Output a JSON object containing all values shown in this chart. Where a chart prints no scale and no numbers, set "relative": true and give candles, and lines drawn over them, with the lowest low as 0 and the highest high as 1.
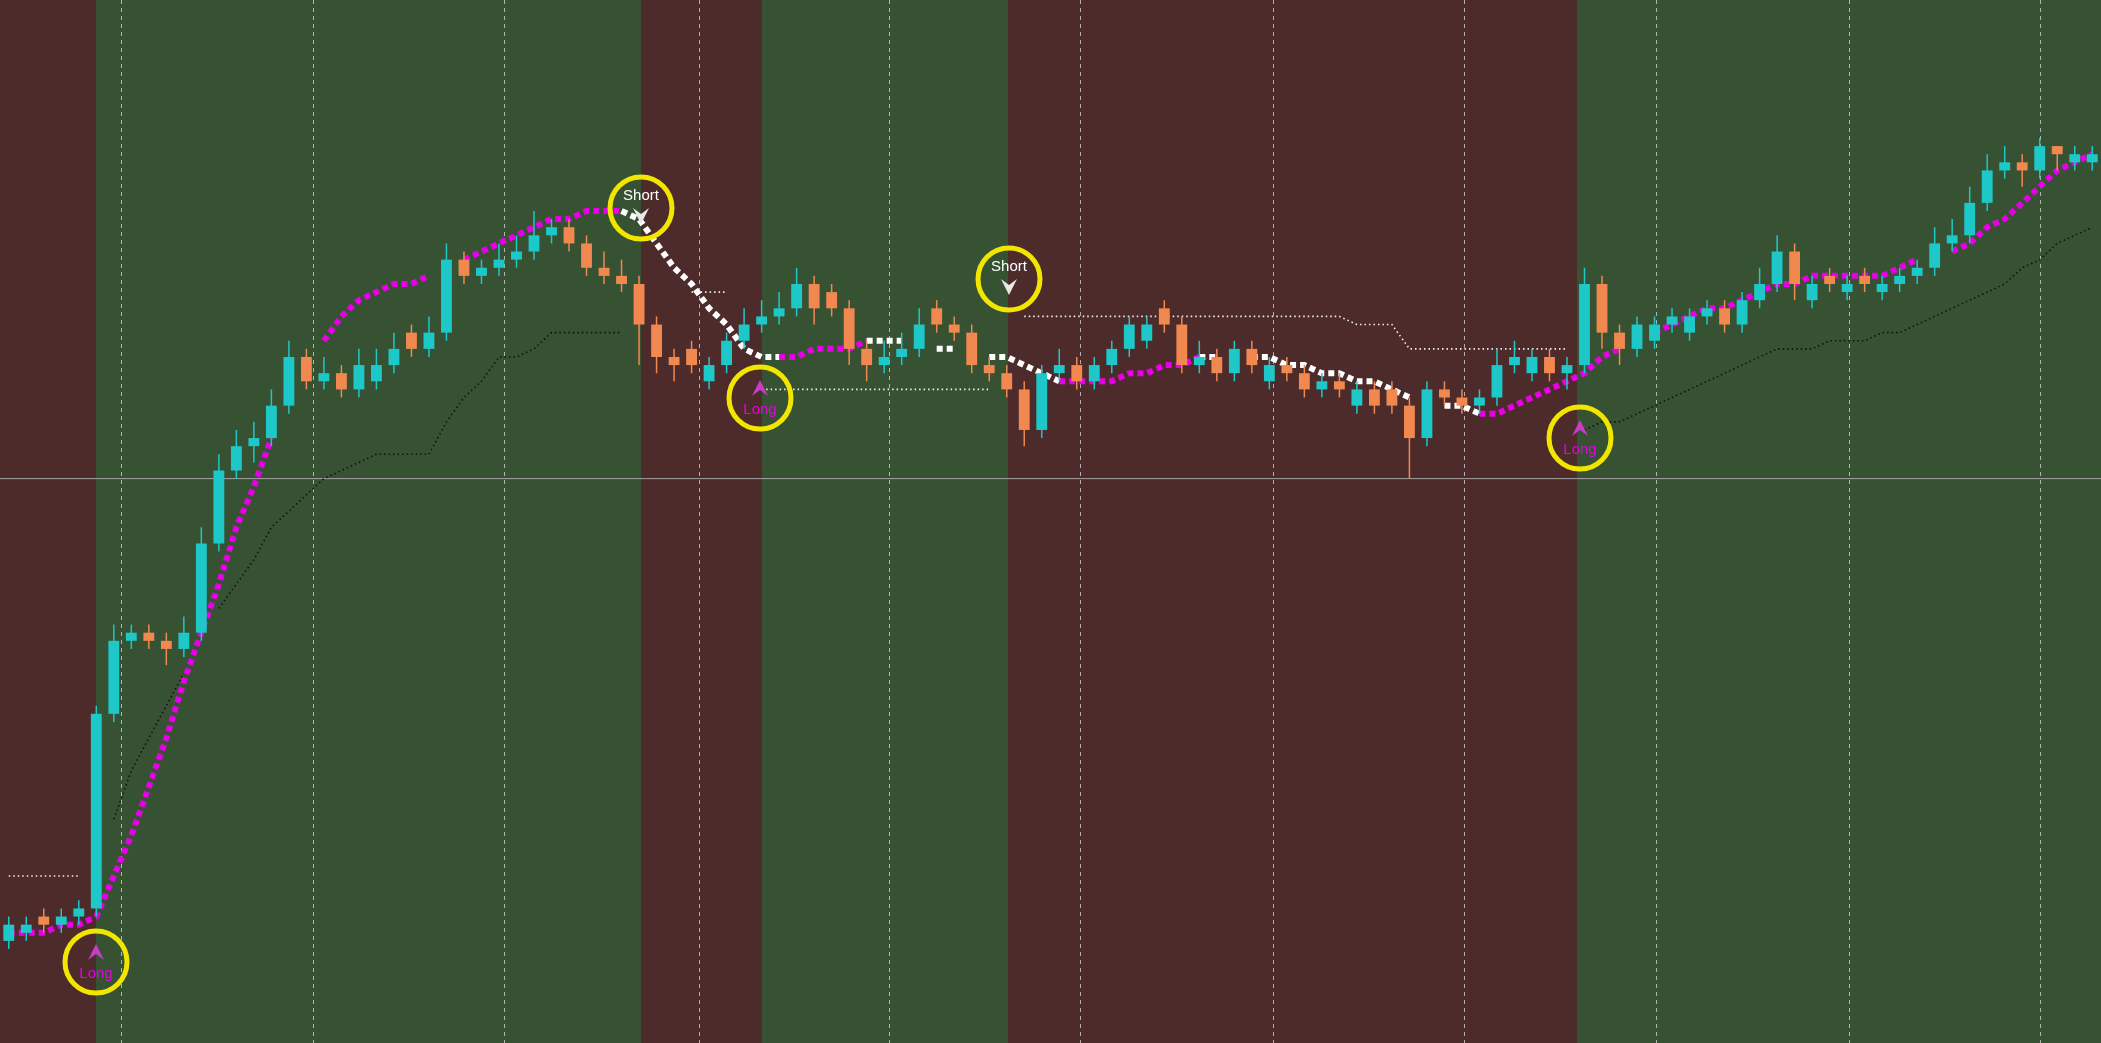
{
  "chart_data": {
    "type": "candlestick",
    "relative": true,
    "categories": [
      null,
      null,
      null,
      null,
      null,
      null,
      null,
      null,
      null,
      null,
      null,
      null,
      null,
      null,
      null,
      null,
      null,
      null,
      null,
      null,
      null,
      null,
      null,
      null,
      null,
      null,
      null,
      null,
      null,
      null,
      null,
      null,
      null,
      null,
      null,
      null,
      null,
      null,
      null,
      null,
      null,
      null,
      null,
      null,
      null,
      null,
      null,
      null,
      null,
      null,
      null,
      null,
      null,
      null,
      null,
      null,
      null,
      null,
      null,
      null,
      null,
      null,
      null,
      null,
      null,
      null,
      null,
      null,
      null,
      null,
      null,
      null,
      null,
      null,
      null,
      null,
      null,
      null,
      null,
      null,
      null,
      null,
      null,
      null,
      null,
      null,
      null,
      null,
      null,
      null,
      null,
      null,
      null,
      null,
      null,
      null,
      null,
      null,
      null,
      null,
      null,
      null,
      null,
      null,
      null,
      null,
      null,
      null,
      null,
      null,
      null,
      null,
      null,
      null,
      null,
      null,
      null,
      null,
      null,
      null
    ],
    "ref_lines": [
      {
        "axis": "y",
        "value": 0.58,
        "color": "#a3a3a3",
        "line_style": "solid"
      }
    ],
    "series": [
      {
        "ohlc": [
          [
            0.01,
            0.04,
            0.0,
            0.03
          ],
          [
            0.02,
            0.04,
            0.01,
            0.03
          ],
          [
            0.04,
            0.05,
            0.02,
            0.03
          ],
          [
            0.03,
            0.05,
            0.02,
            0.04
          ],
          [
            0.04,
            0.06,
            0.03,
            0.05
          ],
          [
            0.05,
            0.3,
            0.04,
            0.29
          ],
          [
            0.29,
            0.4,
            0.28,
            0.38
          ],
          [
            0.38,
            0.4,
            0.37,
            0.39
          ],
          [
            0.39,
            0.4,
            0.37,
            0.38
          ],
          [
            0.38,
            0.39,
            0.35,
            0.37
          ],
          [
            0.37,
            0.41,
            0.36,
            0.39
          ],
          [
            0.39,
            0.52,
            0.38,
            0.5
          ],
          [
            0.5,
            0.61,
            0.49,
            0.59
          ],
          [
            0.59,
            0.64,
            0.58,
            0.62
          ],
          [
            0.62,
            0.65,
            0.6,
            0.63
          ],
          [
            0.63,
            0.69,
            0.62,
            0.67
          ],
          [
            0.67,
            0.75,
            0.66,
            0.73
          ],
          [
            0.73,
            0.74,
            0.69,
            0.7
          ],
          [
            0.7,
            0.73,
            0.69,
            0.71
          ],
          [
            0.71,
            0.72,
            0.68,
            0.69
          ],
          [
            0.69,
            0.74,
            0.68,
            0.72
          ],
          [
            0.7,
            0.74,
            0.69,
            0.72
          ],
          [
            0.72,
            0.76,
            0.71,
            0.74
          ],
          [
            0.76,
            0.77,
            0.73,
            0.74
          ],
          [
            0.74,
            0.78,
            0.73,
            0.76
          ],
          [
            0.76,
            0.87,
            0.75,
            0.85
          ],
          [
            0.85,
            0.86,
            0.82,
            0.83
          ],
          [
            0.83,
            0.85,
            0.82,
            0.84
          ],
          [
            0.84,
            0.87,
            0.83,
            0.85
          ],
          [
            0.85,
            0.88,
            0.84,
            0.86
          ],
          [
            0.86,
            0.91,
            0.85,
            0.88
          ],
          [
            0.88,
            0.9,
            0.87,
            0.89
          ],
          [
            0.89,
            0.9,
            0.86,
            0.87
          ],
          [
            0.87,
            0.88,
            0.83,
            0.84
          ],
          [
            0.84,
            0.86,
            0.82,
            0.83
          ],
          [
            0.83,
            0.85,
            0.81,
            0.82
          ],
          [
            0.82,
            0.83,
            0.72,
            0.77
          ],
          [
            0.77,
            0.78,
            0.71,
            0.73
          ],
          [
            0.73,
            0.74,
            0.7,
            0.72
          ],
          [
            0.74,
            0.75,
            0.71,
            0.72
          ],
          [
            0.7,
            0.73,
            0.69,
            0.72
          ],
          [
            0.72,
            0.76,
            0.71,
            0.75
          ],
          [
            0.75,
            0.79,
            0.74,
            0.77
          ],
          [
            0.77,
            0.8,
            0.76,
            0.78
          ],
          [
            0.78,
            0.81,
            0.77,
            0.79
          ],
          [
            0.79,
            0.84,
            0.78,
            0.82
          ],
          [
            0.82,
            0.83,
            0.77,
            0.79
          ],
          [
            0.81,
            0.82,
            0.78,
            0.79
          ],
          [
            0.79,
            0.8,
            0.72,
            0.74
          ],
          [
            0.74,
            0.75,
            0.7,
            0.72
          ],
          [
            0.72,
            0.75,
            0.71,
            0.73
          ],
          [
            0.73,
            0.76,
            0.72,
            0.74
          ],
          [
            0.74,
            0.79,
            0.73,
            0.77
          ],
          [
            0.79,
            0.8,
            0.76,
            0.77
          ],
          [
            0.77,
            0.78,
            0.75,
            0.76
          ],
          [
            0.76,
            0.77,
            0.71,
            0.72
          ],
          [
            0.72,
            0.73,
            0.7,
            0.71
          ],
          [
            0.71,
            0.72,
            0.68,
            0.69
          ],
          [
            0.69,
            0.7,
            0.62,
            0.64
          ],
          [
            0.64,
            0.72,
            0.63,
            0.71
          ],
          [
            0.71,
            0.74,
            0.7,
            0.72
          ],
          [
            0.72,
            0.73,
            0.69,
            0.7
          ],
          [
            0.7,
            0.73,
            0.69,
            0.72
          ],
          [
            0.72,
            0.75,
            0.71,
            0.74
          ],
          [
            0.74,
            0.78,
            0.73,
            0.77
          ],
          [
            0.75,
            0.78,
            0.74,
            0.77
          ],
          [
            0.79,
            0.8,
            0.76,
            0.77
          ],
          [
            0.77,
            0.78,
            0.71,
            0.72
          ],
          [
            0.72,
            0.75,
            0.71,
            0.73
          ],
          [
            0.73,
            0.74,
            0.7,
            0.71
          ],
          [
            0.71,
            0.75,
            0.7,
            0.74
          ],
          [
            0.74,
            0.75,
            0.71,
            0.72
          ],
          [
            0.7,
            0.73,
            0.69,
            0.72
          ],
          [
            0.72,
            0.73,
            0.7,
            0.71
          ],
          [
            0.71,
            0.72,
            0.68,
            0.69
          ],
          [
            0.69,
            0.71,
            0.68,
            0.7
          ],
          [
            0.7,
            0.71,
            0.68,
            0.69
          ],
          [
            0.67,
            0.7,
            0.66,
            0.69
          ],
          [
            0.69,
            0.7,
            0.66,
            0.67
          ],
          [
            0.69,
            0.7,
            0.66,
            0.67
          ],
          [
            0.67,
            0.68,
            0.58,
            0.63
          ],
          [
            0.63,
            0.7,
            0.62,
            0.69
          ],
          [
            0.69,
            0.7,
            0.67,
            0.68
          ],
          [
            0.68,
            0.69,
            0.66,
            0.67
          ],
          [
            0.67,
            0.69,
            0.66,
            0.68
          ],
          [
            0.68,
            0.74,
            0.67,
            0.72
          ],
          [
            0.72,
            0.75,
            0.71,
            0.73
          ],
          [
            0.71,
            0.74,
            0.7,
            0.73
          ],
          [
            0.73,
            0.74,
            0.7,
            0.71
          ],
          [
            0.71,
            0.73,
            0.69,
            0.72
          ],
          [
            0.72,
            0.84,
            0.71,
            0.82
          ],
          [
            0.82,
            0.83,
            0.74,
            0.76
          ],
          [
            0.76,
            0.77,
            0.72,
            0.74
          ],
          [
            0.74,
            0.78,
            0.73,
            0.77
          ],
          [
            0.75,
            0.78,
            0.74,
            0.77
          ],
          [
            0.77,
            0.79,
            0.76,
            0.78
          ],
          [
            0.76,
            0.79,
            0.75,
            0.78
          ],
          [
            0.78,
            0.8,
            0.77,
            0.79
          ],
          [
            0.79,
            0.8,
            0.76,
            0.77
          ],
          [
            0.77,
            0.81,
            0.76,
            0.8
          ],
          [
            0.8,
            0.84,
            0.79,
            0.82
          ],
          [
            0.82,
            0.88,
            0.81,
            0.86
          ],
          [
            0.86,
            0.87,
            0.8,
            0.82
          ],
          [
            0.8,
            0.83,
            0.79,
            0.82
          ],
          [
            0.83,
            0.84,
            0.81,
            0.82
          ],
          [
            0.81,
            0.83,
            0.8,
            0.82
          ],
          [
            0.83,
            0.84,
            0.81,
            0.82
          ],
          [
            0.81,
            0.83,
            0.8,
            0.82
          ],
          [
            0.82,
            0.84,
            0.81,
            0.83
          ],
          [
            0.83,
            0.85,
            0.82,
            0.84
          ],
          [
            0.84,
            0.89,
            0.83,
            0.87
          ],
          [
            0.87,
            0.9,
            0.86,
            0.88
          ],
          [
            0.88,
            0.94,
            0.87,
            0.92
          ],
          [
            0.92,
            0.98,
            0.91,
            0.96
          ],
          [
            0.96,
            0.99,
            0.95,
            0.97
          ],
          [
            0.97,
            0.98,
            0.94,
            0.96
          ],
          [
            0.96,
            1.0,
            0.95,
            0.99
          ],
          [
            0.99,
            0.99,
            0.96,
            0.98
          ],
          [
            0.97,
            0.99,
            0.96,
            0.98
          ],
          [
            0.97,
            0.99,
            0.96,
            0.98
          ]
        ],
        "colors": [
          "#1ec8c8",
          "#1ec8c8",
          "#f0884f",
          "#1ec8c8",
          "#1ec8c8",
          "#1ec8c8",
          "#1ec8c8",
          "#1ec8c8",
          "#f0884f",
          "#f0884f",
          "#1ec8c8",
          "#1ec8c8",
          "#1ec8c8",
          "#1ec8c8",
          "#1ec8c8",
          "#1ec8c8",
          "#1ec8c8",
          "#f0884f",
          "#1ec8c8",
          "#f0884f",
          "#1ec8c8",
          "#1ec8c8",
          "#1ec8c8",
          "#f0884f",
          "#1ec8c8",
          "#1ec8c8",
          "#f0884f",
          "#1ec8c8",
          "#1ec8c8",
          "#1ec8c8",
          "#1ec8c8",
          "#1ec8c8",
          "#f0884f",
          "#f0884f",
          "#f0884f",
          "#f0884f",
          "#f0884f",
          "#f0884f",
          "#f0884f",
          "#f0884f",
          "#1ec8c8",
          "#1ec8c8",
          "#1ec8c8",
          "#1ec8c8",
          "#1ec8c8",
          "#1ec8c8",
          "#f0884f",
          "#f0884f",
          "#f0884f",
          "#f0884f",
          "#1ec8c8",
          "#1ec8c8",
          "#1ec8c8",
          "#f0884f",
          "#f0884f",
          "#f0884f",
          "#f0884f",
          "#f0884f",
          "#f0884f",
          "#1ec8c8",
          "#1ec8c8",
          "#f0884f",
          "#1ec8c8",
          "#1ec8c8",
          "#1ec8c8",
          "#1ec8c8",
          "#f0884f",
          "#f0884f",
          "#1ec8c8",
          "#f0884f",
          "#1ec8c8",
          "#f0884f",
          "#1ec8c8",
          "#f0884f",
          "#f0884f",
          "#1ec8c8",
          "#f0884f",
          "#1ec8c8",
          "#f0884f",
          "#f0884f",
          "#f0884f",
          "#1ec8c8",
          "#f0884f",
          "#f0884f",
          "#1ec8c8",
          "#1ec8c8",
          "#1ec8c8",
          "#1ec8c8",
          "#f0884f",
          "#1ec8c8",
          "#1ec8c8",
          "#f0884f",
          "#f0884f",
          "#1ec8c8",
          "#1ec8c8",
          "#1ec8c8",
          "#1ec8c8",
          "#1ec8c8",
          "#f0884f",
          "#1ec8c8",
          "#1ec8c8",
          "#1ec8c8",
          "#f0884f",
          "#1ec8c8",
          "#f0884f",
          "#1ec8c8",
          "#f0884f",
          "#1ec8c8",
          "#1ec8c8",
          "#1ec8c8",
          "#1ec8c8",
          "#1ec8c8",
          "#1ec8c8",
          "#1ec8c8",
          "#1ec8c8",
          "#f0884f",
          "#1ec8c8",
          "#f0884f",
          "#1ec8c8",
          "#1ec8c8"
        ]
      },
      {
        "type": "line",
        "line_style": "dashed",
        "color": "#e600e6",
        "values": [
          0.02,
          0.02,
          0.02,
          0.03,
          0.03,
          0.04,
          0.09,
          0.14,
          0.2,
          0.26,
          0.33,
          0.39,
          0.45,
          0.52,
          0.57,
          0.63,
          null,
          null,
          0.75,
          0.78,
          0.8,
          0.81,
          0.82,
          0.82,
          0.83,
          null,
          0.85,
          0.86,
          0.87,
          0.88,
          0.89,
          0.9,
          0.9,
          0.91,
          0.91,
          0.91,
          null,
          null,
          null,
          null,
          null,
          null,
          null,
          null,
          0.73,
          0.73,
          0.74,
          0.74,
          0.74,
          0.75,
          null,
          null,
          null,
          null,
          null,
          null,
          null,
          null,
          null,
          null,
          0.7,
          0.7,
          0.7,
          0.7,
          0.71,
          0.71,
          0.72,
          0.72,
          0.73,
          null,
          null,
          null,
          null,
          null,
          null,
          null,
          null,
          null,
          null,
          null,
          null,
          null,
          null,
          null,
          0.66,
          0.66,
          0.67,
          0.68,
          0.69,
          0.7,
          0.71,
          0.73,
          0.74,
          null,
          0.76,
          0.77,
          0.78,
          0.79,
          0.79,
          0.8,
          0.81,
          0.82,
          0.82,
          0.83,
          0.83,
          0.83,
          0.83,
          0.83,
          0.84,
          0.85,
          null,
          0.86,
          0.87,
          0.89,
          0.9,
          0.92,
          0.94,
          0.96,
          0.97,
          0.98
        ]
      },
      {
        "type": "line",
        "line_style": "dashed",
        "color": "#ffffff",
        "values": [
          null,
          null,
          null,
          null,
          null,
          null,
          null,
          null,
          null,
          null,
          null,
          null,
          null,
          null,
          null,
          null,
          null,
          null,
          null,
          null,
          null,
          null,
          null,
          null,
          null,
          null,
          null,
          null,
          null,
          null,
          null,
          null,
          null,
          null,
          null,
          0.91,
          0.9,
          0.87,
          0.84,
          0.82,
          0.79,
          0.77,
          0.74,
          0.73,
          0.73,
          null,
          null,
          null,
          null,
          0.75,
          0.75,
          0.75,
          null,
          0.74,
          0.74,
          null,
          0.73,
          0.73,
          0.72,
          0.71,
          0.7,
          null,
          null,
          null,
          null,
          null,
          null,
          null,
          0.73,
          0.73,
          null,
          0.73,
          0.73,
          0.72,
          0.72,
          0.71,
          0.71,
          0.7,
          0.7,
          0.69,
          0.68,
          null,
          0.67,
          0.67,
          0.66,
          null,
          null,
          null,
          null,
          null,
          null,
          null,
          null,
          null,
          null,
          null,
          null,
          null,
          null,
          null,
          null,
          null,
          null,
          null,
          null,
          null,
          null,
          null,
          null,
          null,
          null,
          null,
          null,
          null,
          null,
          null,
          null,
          null,
          null,
          null
        ]
      },
      {
        "type": "line",
        "line_style": "dotted",
        "color": "#f2f2f2",
        "values": [
          0.09,
          0.09,
          0.09,
          0.09,
          0.09,
          null,
          null,
          null,
          null,
          null,
          null,
          null,
          null,
          null,
          null,
          null,
          null,
          null,
          null,
          null,
          null,
          null,
          null,
          null,
          null,
          null,
          null,
          null,
          null,
          null,
          null,
          null,
          null,
          null,
          null,
          null,
          null,
          null,
          null,
          0.81,
          0.81,
          0.81,
          null,
          0.69,
          0.69,
          0.69,
          0.69,
          0.69,
          0.69,
          0.69,
          0.69,
          0.69,
          0.69,
          0.69,
          0.69,
          0.69,
          0.69,
          null,
          0.78,
          0.78,
          0.78,
          0.78,
          0.78,
          0.78,
          0.78,
          0.78,
          0.78,
          0.78,
          0.78,
          0.78,
          0.78,
          0.78,
          0.78,
          0.78,
          0.78,
          0.78,
          0.78,
          0.77,
          0.77,
          0.77,
          0.74,
          0.74,
          0.74,
          0.74,
          0.74,
          0.74,
          0.74,
          0.74,
          0.74,
          0.74,
          null,
          null,
          null,
          null,
          null,
          null,
          null,
          null,
          null,
          null,
          null,
          null,
          null,
          null,
          null,
          null,
          null,
          null,
          null,
          null,
          null,
          null,
          null,
          null,
          null,
          null,
          null,
          null,
          null,
          null
        ]
      },
      {
        "type": "line",
        "line_style": "dotted",
        "color": "#111111",
        "values": [
          null,
          null,
          null,
          null,
          null,
          null,
          0.16,
          0.22,
          0.26,
          0.3,
          0.34,
          null,
          0.42,
          0.45,
          0.48,
          0.52,
          0.54,
          0.56,
          0.58,
          0.59,
          0.6,
          0.61,
          0.61,
          0.61,
          0.61,
          0.65,
          0.68,
          0.7,
          0.73,
          0.73,
          0.74,
          0.76,
          0.76,
          0.76,
          0.76,
          0.76,
          null,
          null,
          null,
          null,
          null,
          null,
          null,
          null,
          null,
          null,
          null,
          null,
          null,
          null,
          null,
          null,
          null,
          null,
          null,
          null,
          null,
          null,
          null,
          null,
          null,
          null,
          null,
          null,
          null,
          null,
          null,
          null,
          null,
          null,
          null,
          null,
          null,
          null,
          null,
          null,
          null,
          null,
          null,
          null,
          null,
          null,
          null,
          null,
          null,
          null,
          null,
          null,
          null,
          null,
          0.64,
          0.65,
          0.65,
          0.66,
          0.67,
          0.68,
          0.69,
          0.7,
          0.71,
          0.72,
          0.73,
          0.74,
          0.74,
          0.74,
          0.75,
          0.75,
          0.75,
          0.76,
          0.76,
          0.77,
          0.78,
          0.79,
          0.8,
          0.81,
          0.82,
          0.84,
          0.85,
          0.87,
          0.88,
          0.89
        ]
      }
    ],
    "annotations": [
      "Long",
      "Short",
      "Long",
      "Short",
      "Long"
    ]
  }
}
